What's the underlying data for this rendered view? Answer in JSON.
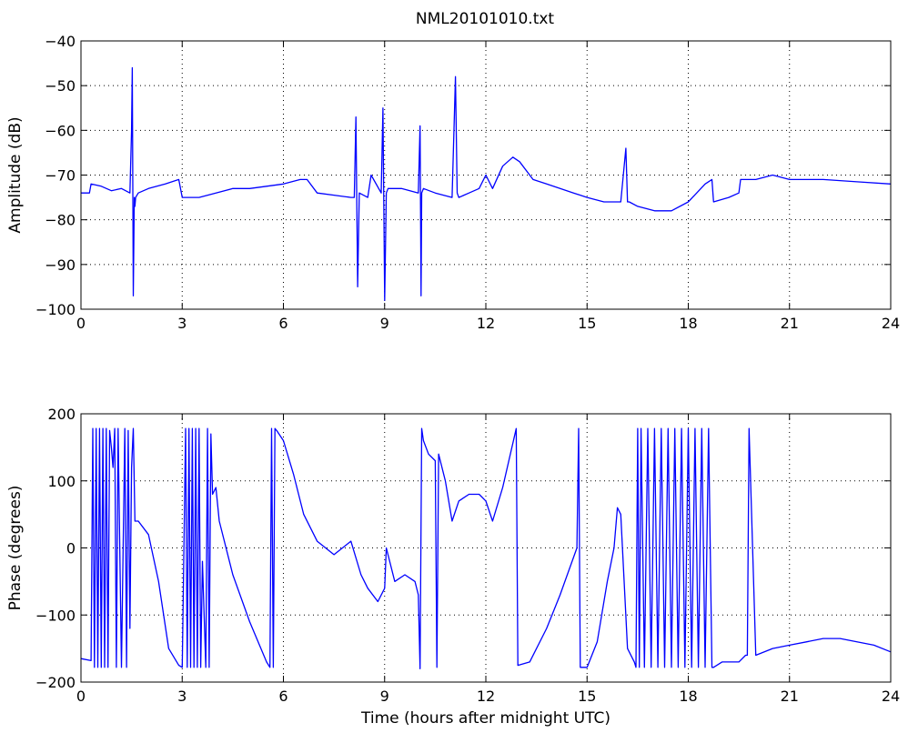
{
  "figure": {
    "title": "NML20101010.txt"
  },
  "chart_data": [
    {
      "type": "line",
      "title": "NML20101010.txt",
      "xlabel": "",
      "ylabel": "Amplitude (dB)",
      "xlim": [
        0,
        24
      ],
      "ylim": [
        -100,
        -40
      ],
      "xticks": [
        0,
        3,
        6,
        9,
        12,
        15,
        18,
        21,
        24
      ],
      "yticks": [
        -100,
        -90,
        -80,
        -70,
        -60,
        -50,
        -40
      ],
      "xtick_labels": [
        "0",
        "3",
        "6",
        "9",
        "12",
        "15",
        "18",
        "21",
        "24"
      ],
      "ytick_labels": [
        "−100",
        "−90",
        "−80",
        "−70",
        "−60",
        "−50",
        "−40"
      ],
      "grid": true,
      "series": [
        {
          "color": "#0000ff",
          "x": [
            0,
            0.25,
            0.3,
            0.6,
            0.9,
            1.2,
            1.45,
            1.5,
            1.52,
            1.55,
            1.58,
            1.6,
            1.62,
            1.7,
            2.0,
            2.5,
            2.9,
            3.0,
            3.5,
            4.0,
            4.5,
            5.0,
            5.5,
            6.0,
            6.5,
            6.7,
            7.0,
            7.5,
            8.0,
            8.1,
            8.15,
            8.2,
            8.25,
            8.5,
            8.6,
            8.9,
            8.95,
            9.0,
            9.05,
            9.1,
            9.5,
            10.0,
            10.05,
            10.08,
            10.1,
            10.15,
            10.5,
            11.0,
            11.1,
            11.15,
            11.2,
            11.5,
            11.8,
            12.0,
            12.2,
            12.5,
            12.8,
            13.0,
            13.4,
            13.8,
            14.2,
            14.6,
            15.0,
            15.5,
            16.0,
            16.15,
            16.2,
            16.25,
            16.5,
            17.0,
            17.5,
            18.0,
            18.5,
            18.7,
            18.75,
            19.2,
            19.5,
            19.55,
            20.0,
            20.5,
            21.0,
            22.0,
            23.0,
            24.0
          ],
          "y": [
            -74,
            -74,
            -72,
            -72.5,
            -73.5,
            -73,
            -74,
            -60,
            -46,
            -97,
            -75,
            -77,
            -75,
            -74,
            -73,
            -72,
            -71,
            -75,
            -75,
            -74,
            -73,
            -73,
            -72.5,
            -72,
            -71,
            -71,
            -74,
            -74.5,
            -75,
            -75,
            -57,
            -95,
            -74,
            -75,
            -70,
            -74,
            -55,
            -98,
            -74,
            -73,
            -73,
            -74,
            -59,
            -97,
            -74,
            -73,
            -74,
            -75,
            -48,
            -74,
            -75,
            -74,
            -73,
            -70,
            -73,
            -68,
            -66,
            -67,
            -71,
            -72,
            -73,
            -74,
            -75,
            -76,
            -76,
            -64,
            -76,
            -76,
            -77,
            -78,
            -78,
            -76,
            -72,
            -71,
            -76,
            -75,
            -74,
            -71,
            -71,
            -70,
            -71,
            -71,
            -71.5,
            -72
          ]
        }
      ]
    },
    {
      "type": "line",
      "title": "",
      "xlabel": "Time (hours after midnight UTC)",
      "ylabel": "Phase (degrees)",
      "xlim": [
        0,
        24
      ],
      "ylim": [
        -200,
        200
      ],
      "xticks": [
        0,
        3,
        6,
        9,
        12,
        15,
        18,
        21,
        24
      ],
      "yticks": [
        -200,
        -100,
        0,
        100,
        200
      ],
      "xtick_labels": [
        "0",
        "3",
        "6",
        "9",
        "12",
        "15",
        "18",
        "21",
        "24"
      ],
      "ytick_labels": [
        "−200",
        "−100",
        "0",
        "100",
        "200"
      ],
      "grid": true,
      "series": [
        {
          "color": "#0000ff",
          "x": [
            0,
            0.3,
            0.35,
            0.4,
            0.45,
            0.5,
            0.55,
            0.6,
            0.65,
            0.7,
            0.75,
            0.8,
            0.85,
            0.9,
            0.95,
            1.0,
            1.05,
            1.1,
            1.2,
            1.3,
            1.35,
            1.4,
            1.45,
            1.5,
            1.55,
            1.6,
            1.7,
            2.0,
            2.3,
            2.6,
            2.9,
            3.0,
            3.1,
            3.15,
            3.2,
            3.25,
            3.3,
            3.35,
            3.4,
            3.45,
            3.5,
            3.55,
            3.6,
            3.7,
            3.75,
            3.8,
            3.85,
            3.9,
            4.0,
            4.1,
            4.5,
            5.0,
            5.5,
            5.6,
            5.65,
            5.7,
            5.75,
            5.8,
            6.0,
            6.3,
            6.6,
            7.0,
            7.5,
            8.0,
            8.3,
            8.5,
            8.8,
            9.0,
            9.05,
            9.3,
            9.6,
            9.9,
            10.0,
            10.05,
            10.1,
            10.15,
            10.3,
            10.5,
            10.55,
            10.6,
            10.8,
            11.0,
            11.2,
            11.5,
            11.8,
            12.0,
            12.2,
            12.5,
            12.9,
            12.95,
            13.3,
            13.8,
            14.2,
            14.7,
            14.75,
            14.8,
            14.85,
            15.0,
            15.3,
            15.6,
            15.8,
            15.9,
            16.0,
            16.2,
            16.4,
            16.45,
            16.5,
            16.55,
            16.6,
            16.7,
            16.8,
            16.9,
            17.0,
            17.1,
            17.2,
            17.3,
            17.4,
            17.5,
            17.6,
            17.7,
            17.8,
            17.9,
            18.0,
            18.1,
            18.2,
            18.3,
            18.4,
            18.5,
            18.6,
            18.7,
            18.75,
            19.0,
            19.5,
            19.7,
            19.75,
            19.8,
            20.0,
            20.5,
            21.0,
            21.5,
            22.0,
            22.5,
            23.0,
            23.5,
            24.0
          ],
          "y": [
            -165,
            -168,
            178,
            -178,
            178,
            -178,
            178,
            -178,
            178,
            -178,
            178,
            -178,
            175,
            150,
            120,
            178,
            -178,
            178,
            -178,
            178,
            -178,
            175,
            -120,
            120,
            178,
            40,
            40,
            20,
            -50,
            -150,
            -175,
            -178,
            178,
            -178,
            178,
            -178,
            178,
            -178,
            178,
            -178,
            178,
            -178,
            -20,
            -178,
            178,
            -178,
            170,
            80,
            90,
            40,
            -40,
            -110,
            -170,
            -178,
            178,
            -178,
            178,
            175,
            160,
            110,
            50,
            10,
            -10,
            10,
            -40,
            -60,
            -80,
            -60,
            0,
            -50,
            -40,
            -50,
            -70,
            -180,
            178,
            160,
            140,
            130,
            -178,
            140,
            100,
            40,
            70,
            80,
            80,
            70,
            40,
            90,
            178,
            -175,
            -170,
            -120,
            -70,
            0,
            178,
            -178,
            -178,
            -178,
            -140,
            -50,
            0,
            60,
            50,
            -150,
            -170,
            -178,
            178,
            -178,
            178,
            -178,
            178,
            -178,
            178,
            -178,
            178,
            -178,
            178,
            -178,
            178,
            -178,
            178,
            -178,
            178,
            -178,
            178,
            -178,
            178,
            -178,
            178,
            -178,
            -178,
            -170,
            -170,
            -160,
            -160,
            178,
            -160,
            -150,
            -145,
            -140,
            -135,
            -135,
            -140,
            -145,
            -155
          ]
        }
      ]
    }
  ]
}
